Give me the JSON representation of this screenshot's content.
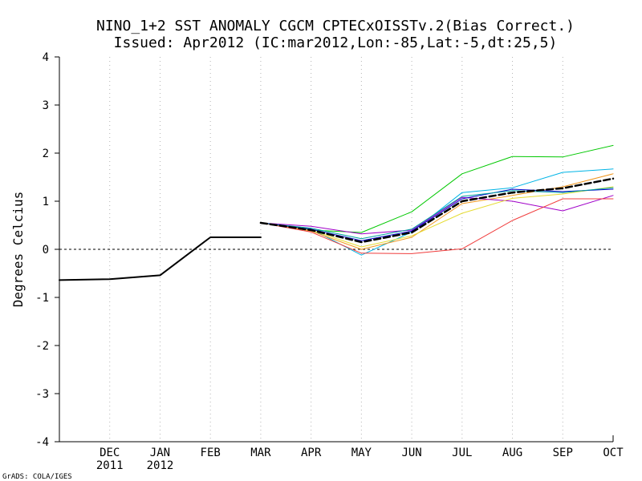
{
  "chart_data": {
    "type": "line",
    "title": "NINO_1+2 SST ANOMALY CGCM CPTECxOISSTv.2(Bias Correct.)",
    "subtitle": "Issued:  Apr2012 (IC:mar2012,Lon:-85,Lat:-5,dt:25,5)",
    "ylabel": "Degrees Celcius",
    "xlabel": "",
    "credit": "GrADS: COLA/IGES",
    "ylim": [
      -4,
      4
    ],
    "yticks": [
      -4,
      -3,
      -2,
      -1,
      0,
      1,
      2,
      3,
      4
    ],
    "ytick_labels": [
      "-4",
      "-3",
      "-2",
      "-1",
      "0",
      "1",
      "2",
      "3",
      "4"
    ],
    "x_range": [
      -1,
      10
    ],
    "x_ticks": [
      {
        "x": 0,
        "line1": "DEC",
        "line2": "2011"
      },
      {
        "x": 1,
        "line1": "JAN",
        "line2": "2012"
      },
      {
        "x": 2,
        "line1": "FEB",
        "line2": ""
      },
      {
        "x": 3,
        "line1": "MAR",
        "line2": ""
      },
      {
        "x": 4,
        "line1": "APR",
        "line2": ""
      },
      {
        "x": 5,
        "line1": "MAY",
        "line2": ""
      },
      {
        "x": 6,
        "line1": "JUN",
        "line2": ""
      },
      {
        "x": 7,
        "line1": "JUL",
        "line2": ""
      },
      {
        "x": 8,
        "line1": "AUG",
        "line2": ""
      },
      {
        "x": 9,
        "line1": "SEP",
        "line2": ""
      },
      {
        "x": 10,
        "line1": "OCT",
        "line2": ""
      }
    ],
    "grid": "dotted vertical at month ticks",
    "zero_line": "dashed",
    "observed": {
      "name": "observed",
      "color": "#000000",
      "segments": [
        [
          [
            -1,
            -0.64
          ],
          [
            0,
            -0.62
          ],
          [
            1,
            -0.54
          ],
          [
            2,
            0.25
          ],
          [
            3,
            0.25
          ]
        ]
      ]
    },
    "forecast_x": [
      3,
      4,
      5,
      6,
      7,
      8,
      9,
      10
    ],
    "members": [
      {
        "name": "member-green",
        "color": "#00c800",
        "values": [
          0.55,
          0.4,
          0.35,
          0.78,
          1.57,
          1.93,
          1.92,
          2.16
        ]
      },
      {
        "name": "member-cyan",
        "color": "#00b4e6",
        "values": [
          0.55,
          0.42,
          -0.12,
          0.36,
          1.18,
          1.28,
          1.6,
          1.67
        ]
      },
      {
        "name": "member-orange",
        "color": "#f0961e",
        "values": [
          0.55,
          0.38,
          0.0,
          0.25,
          0.95,
          1.12,
          1.3,
          1.57
        ]
      },
      {
        "name": "member-purple",
        "color": "#a000c8",
        "values": [
          0.55,
          0.48,
          0.32,
          0.4,
          1.08,
          1.0,
          0.8,
          1.12
        ]
      },
      {
        "name": "member-red",
        "color": "#f03c3c",
        "values": [
          0.55,
          0.36,
          -0.08,
          -0.09,
          0.01,
          0.6,
          1.05,
          1.05
        ]
      },
      {
        "name": "member-yellow",
        "color": "#e6dc32",
        "values": [
          0.55,
          0.4,
          0.05,
          0.28,
          0.75,
          1.06,
          1.15,
          1.3
        ]
      },
      {
        "name": "member-blue",
        "color": "#0000c8",
        "values": [
          0.55,
          0.42,
          0.18,
          0.38,
          1.05,
          1.25,
          1.2,
          1.25
        ]
      },
      {
        "name": "member-teal",
        "color": "#00a0a0",
        "values": [
          0.55,
          0.44,
          0.22,
          0.42,
          1.1,
          1.22,
          1.18,
          1.28
        ]
      }
    ],
    "ensemble_mean": {
      "name": "ensemble-mean",
      "color": "#000000",
      "style": "dashed",
      "values": [
        0.55,
        0.4,
        0.15,
        0.35,
        1.0,
        1.18,
        1.27,
        1.47
      ]
    }
  }
}
